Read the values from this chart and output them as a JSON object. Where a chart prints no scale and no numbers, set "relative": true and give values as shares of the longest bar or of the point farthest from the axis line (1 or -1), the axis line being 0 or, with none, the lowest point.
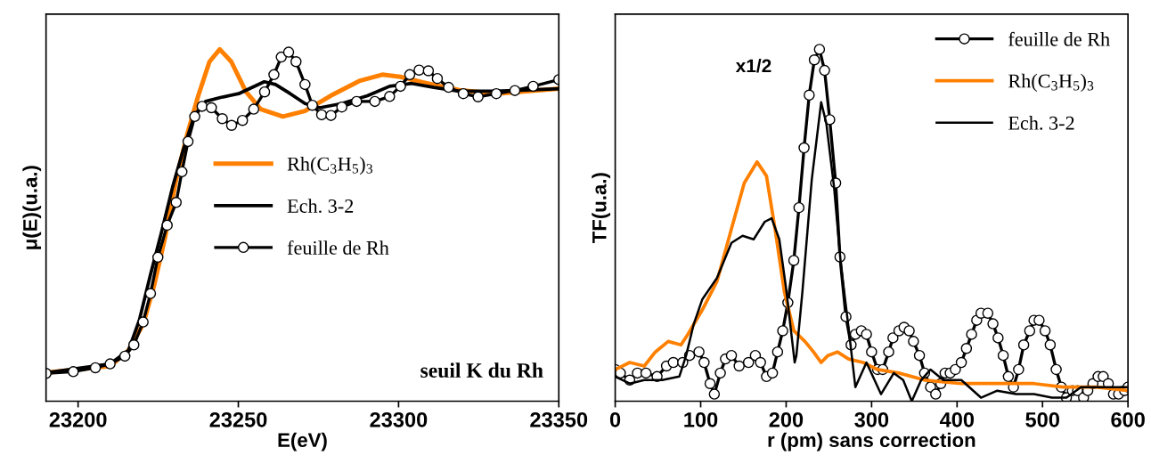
{
  "chart_data": [
    {
      "type": "line",
      "relative": true,
      "xlabel": "E(eV)",
      "ylabel": "μ(E)(u.a.)",
      "xlim": [
        23190,
        23350
      ],
      "xticks": [
        23200,
        23250,
        23300,
        23350
      ],
      "tick_labels": "x",
      "grid": false,
      "legend": "center",
      "line_style": "solid",
      "annotations": [
        "seuil K du Rh"
      ],
      "series": [
        {
          "name": "Rh(C$_{3}$H$_{5}$)$_{3}$",
          "color": "#ff8000",
          "marker": "none",
          "x": [
            23190,
            23210,
            23215.7,
            23220.3,
            23223.7,
            23227.2,
            23230.6,
            23234.1,
            23237.5,
            23241,
            23244.2,
            23247.8,
            23252.4,
            23257,
            23263.9,
            23270.8,
            23278.8,
            23288,
            23294.9,
            23300.6,
            23307.5,
            23319,
            23330.5,
            23350
          ],
          "values": [
            0.081,
            0.1,
            0.144,
            0.219,
            0.328,
            0.468,
            0.63,
            0.76,
            0.868,
            0.965,
            1.0,
            0.965,
            0.879,
            0.83,
            0.809,
            0.825,
            0.868,
            0.911,
            0.928,
            0.922,
            0.906,
            0.884,
            0.874,
            0.888
          ]
        },
        {
          "name": "Ech. 3-2",
          "color": "#000000",
          "marker": "none",
          "x": [
            23190,
            23210,
            23215.7,
            23219.1,
            23222.6,
            23226,
            23229.5,
            23232.9,
            23236.4,
            23239.8,
            23244.4,
            23250.1,
            23258.1,
            23261.6,
            23266.2,
            23270.8,
            23275.4,
            23282.3,
            23290.3,
            23297.2,
            23304.1,
            23311,
            23319,
            23330.5,
            23350
          ],
          "values": [
            0.081,
            0.106,
            0.144,
            0.23,
            0.36,
            0.479,
            0.609,
            0.717,
            0.814,
            0.852,
            0.863,
            0.874,
            0.908,
            0.9,
            0.874,
            0.846,
            0.834,
            0.846,
            0.868,
            0.895,
            0.903,
            0.892,
            0.881,
            0.881,
            0.888
          ]
        },
        {
          "name": "feuille de Rh",
          "color": "#000000",
          "marker": "circle",
          "x": [
            23190,
            23198.5,
            23205.4,
            23210,
            23214.6,
            23217.4,
            23220.3,
            23222.6,
            23224.9,
            23227.8,
            23230.6,
            23232.4,
            23234.3,
            23236.4,
            23238.7,
            23241.6,
            23245,
            23247.9,
            23251.3,
            23254.8,
            23258.2,
            23261.1,
            23263.4,
            23265.7,
            23268,
            23270.8,
            23273.1,
            23276,
            23278.9,
            23282.3,
            23286.9,
            23292.6,
            23297.2,
            23300.6,
            23303.5,
            23306.4,
            23309.3,
            23312.1,
            23315.6,
            23320.2,
            23324.8,
            23330.5,
            23336.3,
            23342,
            23350
          ],
          "values": [
            0.079,
            0.084,
            0.095,
            0.106,
            0.128,
            0.16,
            0.225,
            0.306,
            0.409,
            0.5,
            0.565,
            0.652,
            0.738,
            0.809,
            0.838,
            0.834,
            0.803,
            0.784,
            0.798,
            0.83,
            0.879,
            0.928,
            0.978,
            0.992,
            0.965,
            0.9,
            0.841,
            0.814,
            0.812,
            0.836,
            0.852,
            0.852,
            0.866,
            0.895,
            0.928,
            0.941,
            0.939,
            0.917,
            0.892,
            0.874,
            0.865,
            0.874,
            0.883,
            0.895,
            0.914
          ]
        }
      ]
    },
    {
      "type": "line",
      "relative": true,
      "xlabel": "r (pm) sans correction",
      "ylabel": "TF(u.a.)",
      "xlim": [
        0,
        600
      ],
      "xticks": [
        0,
        100,
        200,
        300,
        400,
        500,
        600
      ],
      "tick_labels": "x",
      "grid": false,
      "legend": "top right",
      "line_style": "solid",
      "annotations": [
        "x1/2"
      ],
      "series": [
        {
          "name": "feuille de Rh",
          "color": "#000000",
          "marker": "circle",
          "x": [
            0,
            6,
            17,
            26,
            36,
            49,
            60,
            68,
            79,
            87,
            98,
            104,
            111,
            116,
            123,
            129,
            136,
            145,
            156,
            164,
            170,
            177,
            184,
            190,
            196,
            202,
            209,
            215,
            221,
            227,
            233,
            239,
            245,
            251,
            258,
            263,
            270,
            276,
            281,
            288,
            294,
            300,
            307,
            313,
            320,
            325,
            332,
            338,
            344,
            349,
            356,
            362,
            369,
            375,
            381,
            386,
            392,
            398,
            405,
            411,
            417,
            423,
            428,
            436,
            442,
            448,
            454,
            460,
            466,
            472,
            478,
            485,
            490,
            496,
            503,
            509,
            516,
            522,
            528,
            535,
            541,
            548,
            553,
            559,
            565,
            571,
            577,
            583,
            589,
            596,
            600
          ],
          "values": [
            0.09,
            0.08,
            0.06,
            0.08,
            0.08,
            0.07,
            0.1,
            0.11,
            0.11,
            0.13,
            0.14,
            0.11,
            0.05,
            0.02,
            0.08,
            0.12,
            0.13,
            0.1,
            0.11,
            0.13,
            0.11,
            0.07,
            0.08,
            0.14,
            0.2,
            0.28,
            0.4,
            0.55,
            0.72,
            0.87,
            0.97,
            1.0,
            0.94,
            0.8,
            0.62,
            0.41,
            0.24,
            0.16,
            0.19,
            0.2,
            0.19,
            0.14,
            0.09,
            0.09,
            0.14,
            0.18,
            0.2,
            0.21,
            0.2,
            0.17,
            0.13,
            0.08,
            0.04,
            0.02,
            0.05,
            0.08,
            0.08,
            0.09,
            0.11,
            0.15,
            0.19,
            0.23,
            0.25,
            0.25,
            0.22,
            0.18,
            0.13,
            0.07,
            0.04,
            0.09,
            0.16,
            0.2,
            0.23,
            0.23,
            0.2,
            0.16,
            0.09,
            0.04,
            0.01,
            0.03,
            0.03,
            0.01,
            0.03,
            0.05,
            0.07,
            0.07,
            0.05,
            0.02,
            0.02,
            0.03,
            0.04
          ]
        },
        {
          "name": "Rh(C$_{3}$H$_{5}$)$_{3}$",
          "color": "#ff8000",
          "marker": "none",
          "x": [
            0,
            17,
            34,
            47,
            62,
            77,
            85,
            102,
            119,
            136,
            151,
            166,
            177,
            187,
            198,
            209,
            222,
            232,
            241,
            249,
            260,
            273,
            290,
            307,
            332,
            362,
            405,
            447,
            490,
            524,
            562,
            600
          ],
          "values": [
            0.09,
            0.11,
            0.1,
            0.14,
            0.17,
            0.16,
            0.19,
            0.26,
            0.34,
            0.49,
            0.62,
            0.68,
            0.64,
            0.49,
            0.31,
            0.2,
            0.17,
            0.14,
            0.11,
            0.13,
            0.14,
            0.12,
            0.11,
            0.09,
            0.08,
            0.06,
            0.05,
            0.05,
            0.05,
            0.04,
            0.04,
            0.03
          ]
        },
        {
          "name": "Ech. 3-2",
          "color": "#000000",
          "marker": "none",
          "x": [
            0,
            17,
            34,
            55,
            75,
            83,
            92,
            102,
            119,
            136,
            149,
            162,
            175,
            183,
            192,
            200,
            210,
            212,
            219,
            230,
            241,
            247,
            256,
            264,
            273,
            281,
            294,
            311,
            326,
            337,
            347,
            358,
            369,
            384,
            405,
            428,
            447,
            469,
            490,
            511,
            528,
            545,
            562,
            600
          ],
          "values": [
            0.07,
            0.05,
            0.06,
            0.06,
            0.07,
            0.13,
            0.22,
            0.29,
            0.35,
            0.45,
            0.47,
            0.46,
            0.51,
            0.52,
            0.46,
            0.32,
            0.11,
            0.13,
            0.31,
            0.63,
            0.85,
            0.79,
            0.61,
            0.39,
            0.21,
            0.04,
            0.11,
            0.02,
            0.08,
            0.06,
            0.0,
            0.06,
            0.09,
            0.06,
            0.06,
            0.01,
            0.03,
            0.02,
            0.02,
            0.01,
            0.01,
            0.04,
            0.04,
            0.04
          ]
        }
      ]
    }
  ]
}
